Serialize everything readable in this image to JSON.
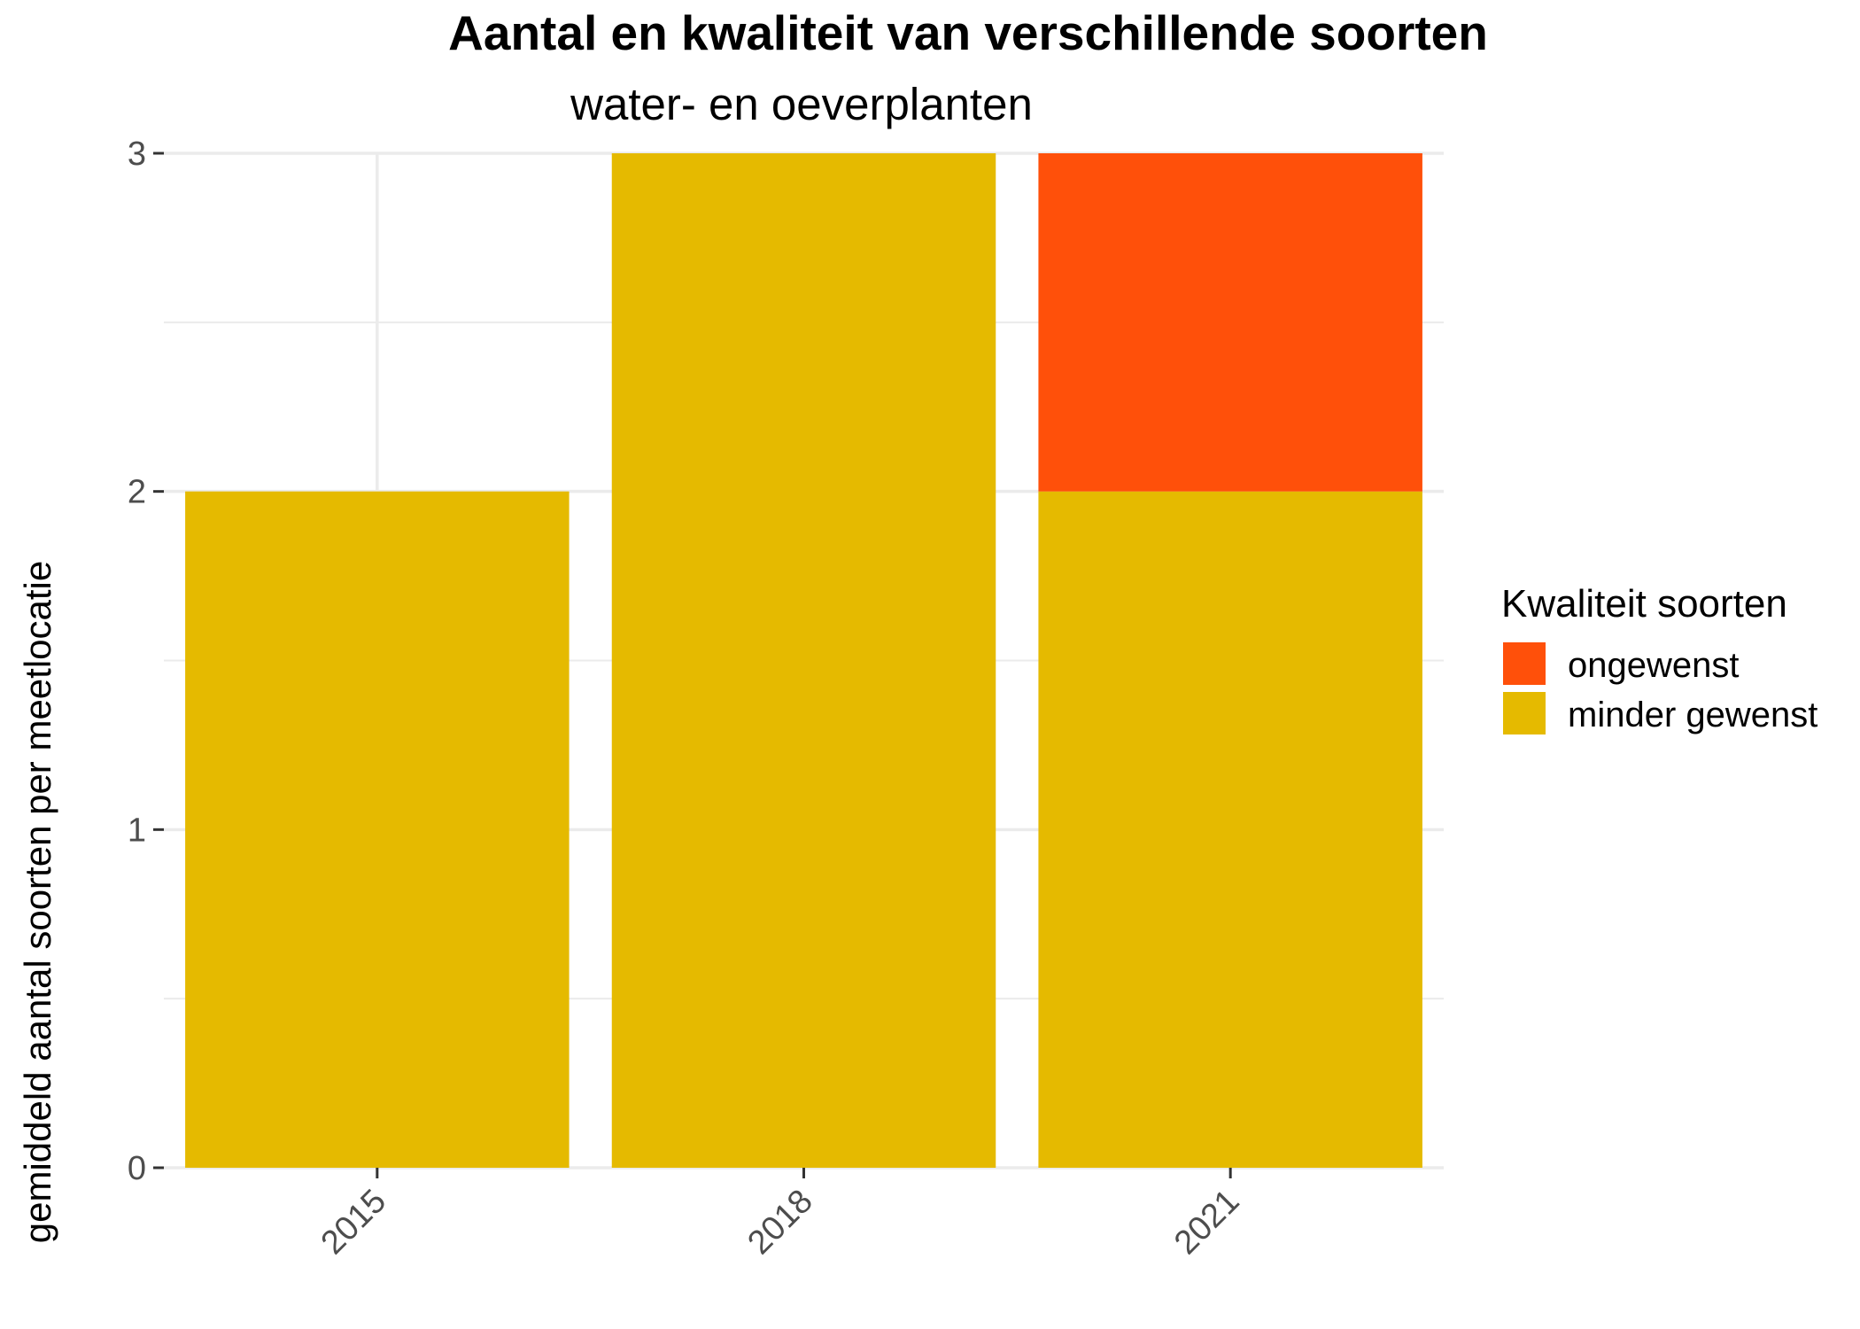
{
  "chart_data": {
    "type": "bar",
    "stacked": true,
    "title": "Aantal en kwaliteit van verschillende soorten",
    "subtitle": "water- en oeverplanten",
    "xlabel": "",
    "ylabel": "gemiddeld aantal soorten per meetlocatie",
    "categories": [
      "2015",
      "2018",
      "2021"
    ],
    "ylim": [
      0,
      3
    ],
    "yticks": [
      "0",
      "1",
      "2",
      "3"
    ],
    "grid": true,
    "legend": {
      "title": "Kwaliteit soorten",
      "placement": "right",
      "entries": [
        {
          "label": "ongewenst",
          "color": "#FF500A"
        },
        {
          "label": "minder gewenst",
          "color": "#E5BA00"
        }
      ]
    },
    "series": [
      {
        "name": "minder gewenst",
        "color": "#E5BA00",
        "values": [
          2,
          3,
          2
        ]
      },
      {
        "name": "ongewenst",
        "color": "#FF500A",
        "values": [
          0,
          0,
          1
        ]
      }
    ]
  }
}
